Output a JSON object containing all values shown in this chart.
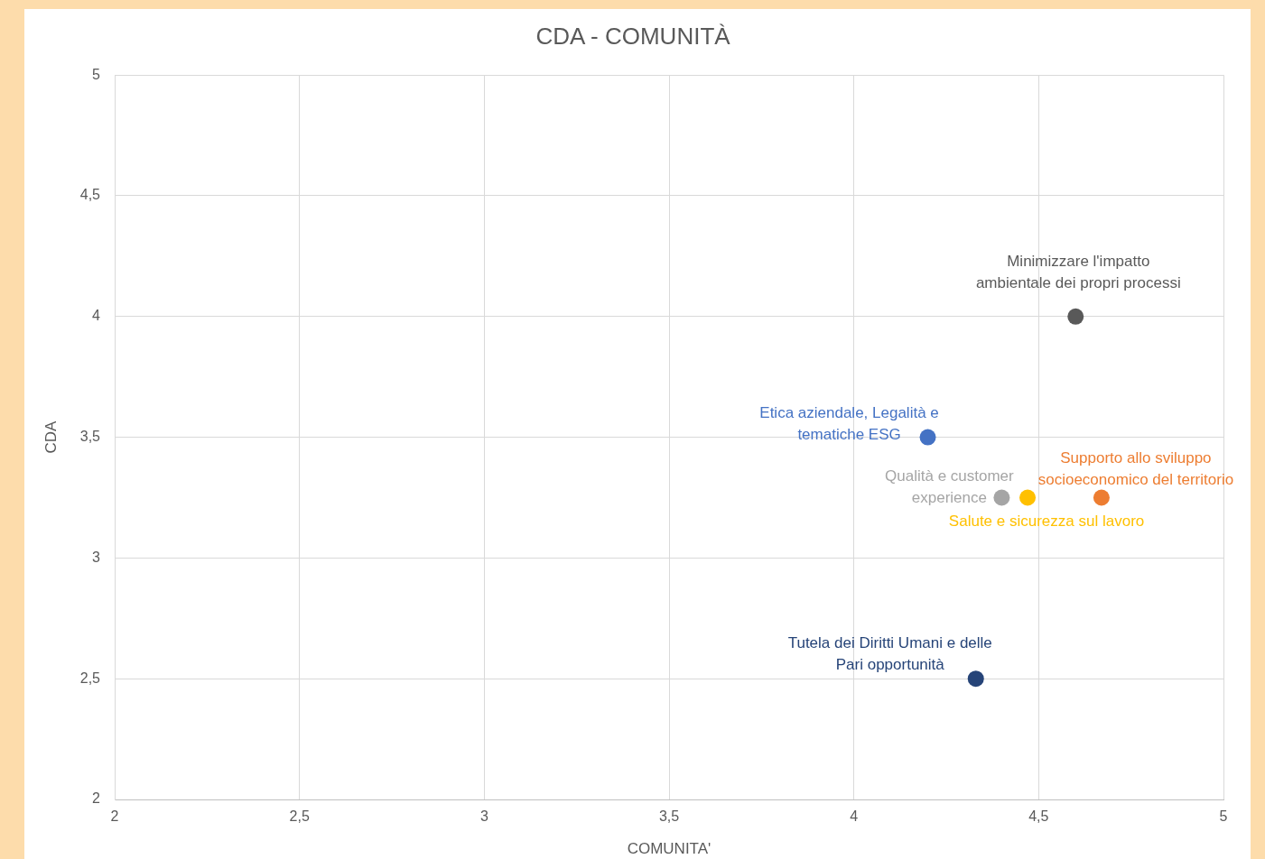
{
  "chart_data": {
    "type": "scatter",
    "title": "CDA - COMUNITÀ",
    "xlabel": "COMUNITA'",
    "ylabel": "CDA",
    "xlim": [
      2,
      5
    ],
    "xticks": [
      2,
      {
        "value": 2.5,
        "label": "2,5"
      },
      3,
      {
        "value": 3.5,
        "label": "3,5"
      },
      4,
      {
        "value": 4.5,
        "label": "4,5"
      },
      5
    ],
    "ylim": [
      2,
      5
    ],
    "yticks": [
      2,
      {
        "value": 2.5,
        "label": "2,5"
      },
      3,
      {
        "value": 3.5,
        "label": "3,5"
      },
      4,
      {
        "value": 4.5,
        "label": "4,5"
      },
      5
    ],
    "grid": true,
    "marker": "circle",
    "series": [
      {
        "name": "Minimizzare l'impatto ambientale dei propri processi",
        "color": "#595959",
        "x": [
          4.6
        ],
        "values": [
          4
        ]
      },
      {
        "name": "Etica aziendale, Legalità e tematiche ESG",
        "color": "#4472c4",
        "x": [
          4.2
        ],
        "values": [
          3.5
        ]
      },
      {
        "name": "Qualità e customer experience",
        "color": "#a5a5a5",
        "x": [
          4.4
        ],
        "values": [
          3.25
        ]
      },
      {
        "name": "Salute e sicurezza sul lavoro",
        "color": "#ffc000",
        "x": [
          4.47
        ],
        "values": [
          3.25
        ]
      },
      {
        "name": "Supporto allo sviluppo socioeconomico del territorio",
        "color": "#ed7d31",
        "x": [
          4.67
        ],
        "values": [
          3.25
        ]
      },
      {
        "name": "Tutela dei Diritti Umani e delle Pari opportunità",
        "color": "#264478",
        "x": [
          4.33
        ],
        "values": [
          2.5
        ]
      }
    ]
  }
}
